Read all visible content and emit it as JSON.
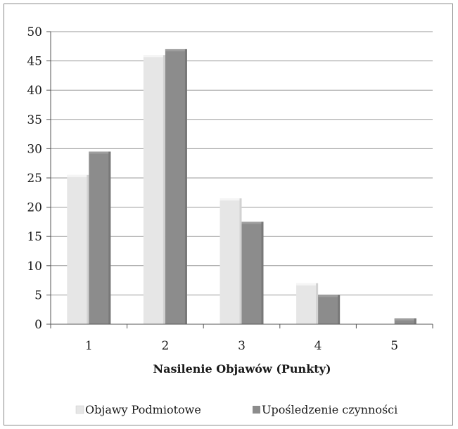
{
  "chart_data": {
    "type": "bar",
    "categories": [
      "1",
      "2",
      "3",
      "4",
      "5"
    ],
    "series": [
      {
        "name": "Objawy Podmiotowe",
        "values": [
          25.5,
          46,
          21.5,
          7,
          0
        ],
        "color": "#e6e6e6"
      },
      {
        "name": "Upośledzenie czynności",
        "values": [
          29.5,
          47,
          17.5,
          5,
          1
        ],
        "color": "#8c8c8c"
      }
    ],
    "title": "",
    "xlabel": "Nasilenie Objawów (Punkty)",
    "ylabel": "",
    "ylim": [
      0,
      50
    ],
    "yticks": [
      "0",
      "5",
      "10",
      "15",
      "20",
      "25",
      "30",
      "35",
      "40",
      "45",
      "50"
    ],
    "grid": true,
    "legend_position": "bottom"
  }
}
